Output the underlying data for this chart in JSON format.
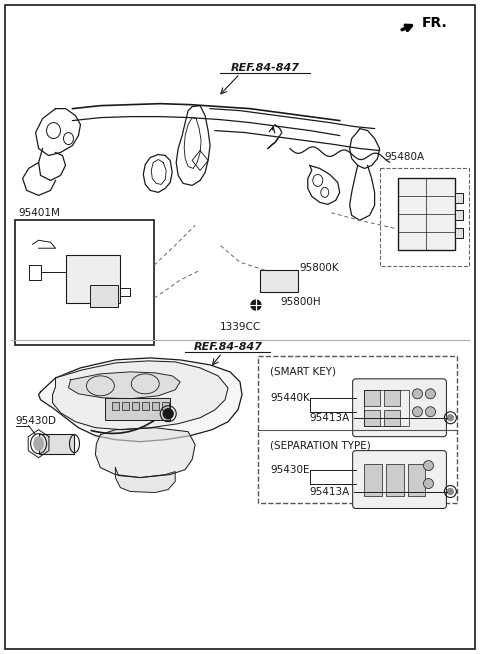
{
  "background_color": "#ffffff",
  "fig_width": 4.8,
  "fig_height": 6.54,
  "dpi": 100,
  "fr_label": "FR.",
  "top_ref_label": "REF.84-847",
  "bottom_ref_label": "REF.84-847",
  "label_95480A": "95480A",
  "label_95401M": "95401M",
  "label_95800K": "95800K",
  "label_95800H": "95800H",
  "label_1339CC": "1339CC",
  "label_95430D": "95430D",
  "label_95440K": "95440K",
  "label_95413A": "95413A",
  "label_95430E": "95430E",
  "smart_key_title": "(SMART KEY)",
  "sep_type_title": "(SEPARATION TYPE)",
  "line_color": "#1a1a1a",
  "dash_color": "#666666",
  "box_bg": "#f5f5f5"
}
